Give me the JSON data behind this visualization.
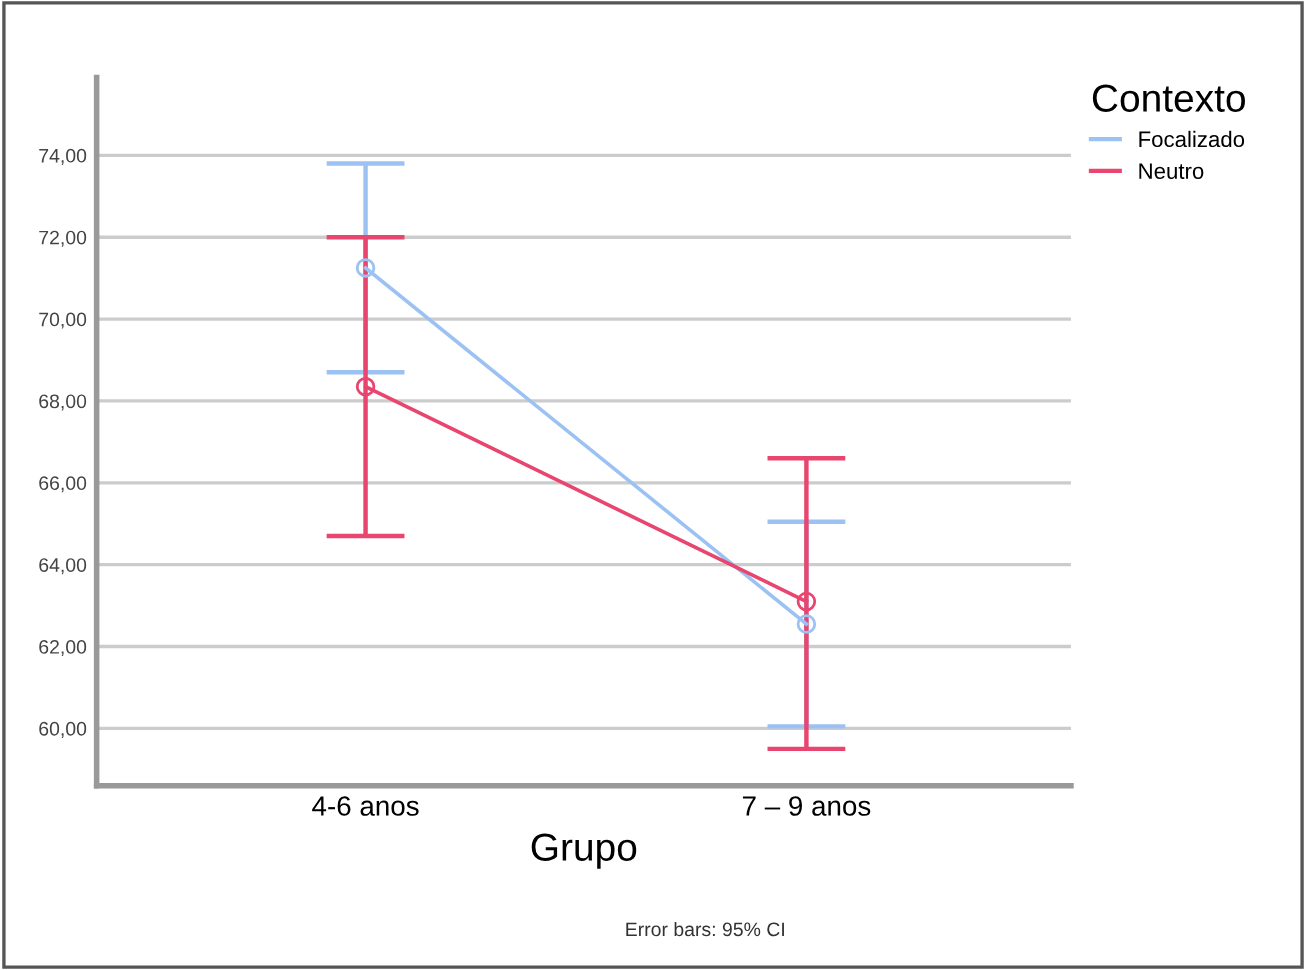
{
  "chart_data": {
    "type": "line",
    "xlabel": "Grupo",
    "legend_title": "Contexto",
    "annotations": [
      "Error bars: 95% CI"
    ],
    "categories": [
      "4-6 anos",
      "7 – 9 anos"
    ],
    "series": [
      {
        "name": "Focalizado",
        "color": "#9bc2f2",
        "values": [
          71.25,
          62.55
        ],
        "errors": [
          [
            68.7,
            73.8
          ],
          [
            60.05,
            65.05
          ]
        ]
      },
      {
        "name": "Neutro",
        "color": "#e8456f",
        "values": [
          68.35,
          63.1
        ],
        "errors": [
          [
            64.7,
            72.0
          ],
          [
            59.5,
            66.6
          ]
        ]
      }
    ],
    "ylim": [
      58.6,
      75.9
    ],
    "yticks": [
      {
        "value": 60,
        "label": "60,00"
      },
      {
        "value": 62,
        "label": "62,00"
      },
      {
        "value": 64,
        "label": "64,00"
      },
      {
        "value": 66,
        "label": "66,00"
      },
      {
        "value": 68,
        "label": "68,00"
      },
      {
        "value": 70,
        "label": "70,00"
      },
      {
        "value": 72,
        "label": "72,00"
      },
      {
        "value": 74,
        "label": "74,00"
      }
    ],
    "grid": "y",
    "legend": "top right",
    "marker": "circle",
    "line_style": "solid"
  }
}
